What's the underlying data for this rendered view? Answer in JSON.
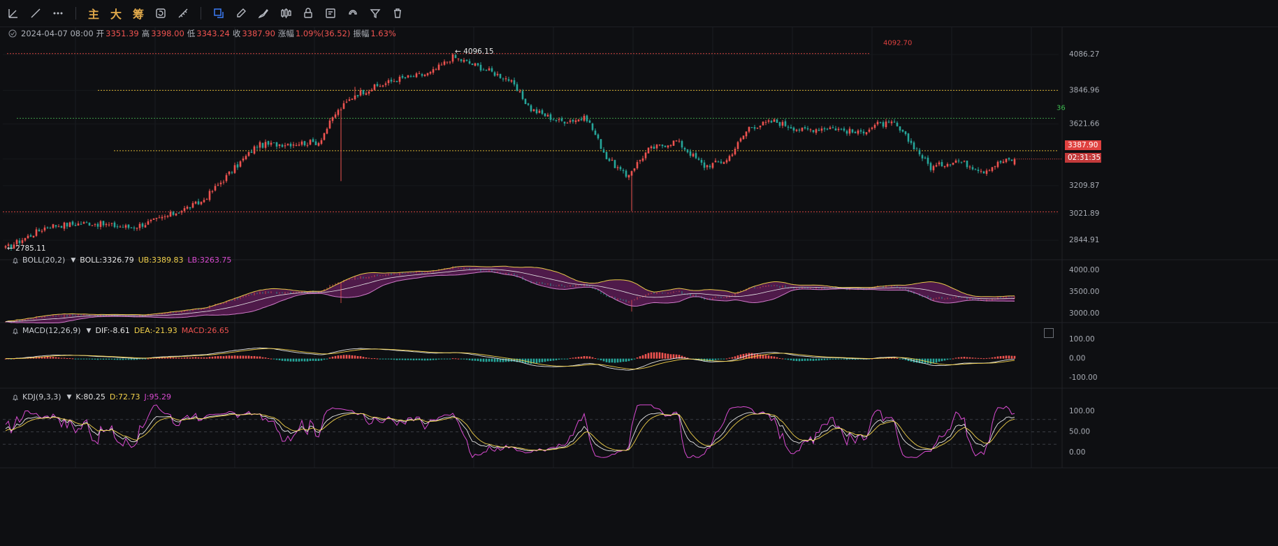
{
  "toolbar": {
    "zhu": "主",
    "da": "大",
    "chou": "筹"
  },
  "ohlc": {
    "date": "2024-04-07 08:00",
    "open_label": "开",
    "open": "3351.39",
    "high_label": "高",
    "high": "3398.00",
    "low_label": "低",
    "low": "3343.24",
    "close_label": "收",
    "close": "3387.90",
    "change_label": "涨幅",
    "change": "1.09%(36.52)",
    "amp_label": "振幅",
    "amp": "1.63%"
  },
  "price_tag": "3387.90",
  "countdown": "02:31:35",
  "boll": {
    "name": "BOLL(20,2)",
    "mid": "BOLL:3326.79",
    "ub": "UB:3389.83",
    "lb": "LB:3263.75"
  },
  "macd": {
    "name": "MACD(12,26,9)",
    "dif": "DIF:-8.61",
    "dea": "DEA:-21.93",
    "macd": "MACD:26.65"
  },
  "kdj": {
    "name": "KDJ(9,3,3)",
    "k": "K:80.25",
    "d": "D:72.73",
    "j": "J:95.29"
  },
  "colors": {
    "up": "#ef5350",
    "down": "#26a69a",
    "yellow": "#f2d14b",
    "magenta": "#d94bd1",
    "band": "#5a1c55"
  },
  "chart_data": [
    {
      "type": "candlestick",
      "y_ticks": [
        "4086.27",
        "3846.96",
        "3621.66",
        "3387.90",
        "3209.87",
        "3021.89",
        "2844.91"
      ],
      "y_tick_values": [
        4086.27,
        3846.96,
        3621.66,
        3387.9,
        3209.87,
        3021.89,
        2844.91
      ],
      "ylim": [
        2780,
        4180
      ],
      "annotations": {
        "max_label": "← 4096.15",
        "min_label": "← 2785.11",
        "level_red_top": "4092.70",
        "level_green": "36"
      },
      "levels": [
        4092.7,
        3846.96,
        3660,
        3443,
        3035
      ],
      "anchors": [
        [
          0,
          2790
        ],
        [
          15,
          2940
        ],
        [
          30,
          2960
        ],
        [
          45,
          2930
        ],
        [
          55,
          2985
        ],
        [
          70,
          3100
        ],
        [
          80,
          3290
        ],
        [
          90,
          3480
        ],
        [
          100,
          3490
        ],
        [
          112,
          3500
        ],
        [
          118,
          3690
        ],
        [
          125,
          3820
        ],
        [
          140,
          3920
        ],
        [
          152,
          3960
        ],
        [
          160,
          4070
        ],
        [
          170,
          4000
        ],
        [
          180,
          3920
        ],
        [
          188,
          3720
        ],
        [
          198,
          3640
        ],
        [
          208,
          3660
        ],
        [
          215,
          3400
        ],
        [
          222,
          3270
        ],
        [
          230,
          3450
        ],
        [
          240,
          3510
        ],
        [
          250,
          3340
        ],
        [
          258,
          3380
        ],
        [
          266,
          3600
        ],
        [
          275,
          3640
        ],
        [
          285,
          3580
        ],
        [
          295,
          3600
        ],
        [
          305,
          3560
        ],
        [
          312,
          3620
        ],
        [
          318,
          3620
        ],
        [
          326,
          3450
        ],
        [
          331,
          3330
        ],
        [
          340,
          3380
        ],
        [
          350,
          3310
        ],
        [
          356,
          3368
        ],
        [
          361,
          3387.9
        ]
      ]
    },
    {
      "type": "line",
      "name": "BOLL(20,2)",
      "y_ticks": [
        "4000.00",
        "3500.00",
        "3000.00"
      ],
      "y_tick_values": [
        4000,
        3500,
        3000
      ],
      "ylim": [
        2850,
        4150
      ]
    },
    {
      "type": "bar",
      "name": "MACD(12,26,9)",
      "y_ticks": [
        "100.00",
        "0.00",
        "-100.00"
      ],
      "y_tick_values": [
        100,
        0,
        -100
      ],
      "ylim": [
        -140,
        130
      ]
    },
    {
      "type": "line",
      "name": "KDJ(9,3,3)",
      "y_ticks": [
        "100.00",
        "50.00",
        "0.00"
      ],
      "y_tick_values": [
        100,
        50,
        0
      ],
      "ylim": [
        -20,
        125
      ]
    }
  ]
}
